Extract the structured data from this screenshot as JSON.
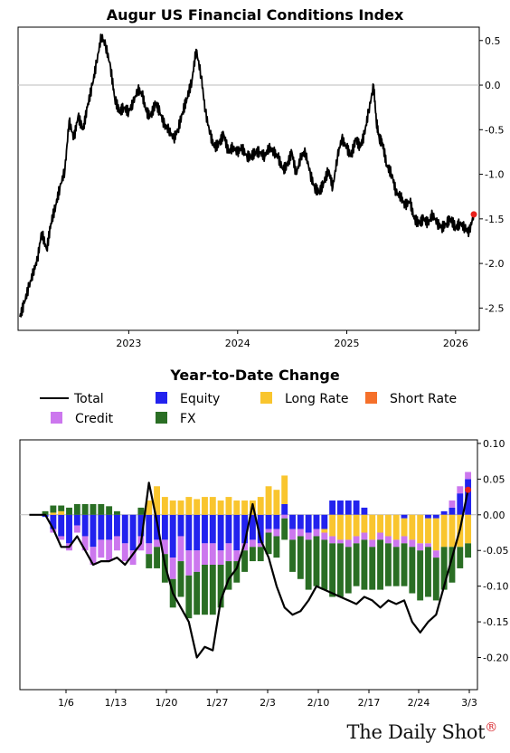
{
  "chart_data": [
    {
      "type": "line",
      "title": "Augur US Financial Conditions Index",
      "x_range": [
        "2022-01-01",
        "2026-03-03"
      ],
      "ylim": [
        -2.75,
        0.65
      ],
      "y_ticks": [
        "0.5",
        "0.0",
        "-0.5",
        "-1.0",
        "-1.5",
        "-2.0",
        "-2.5"
      ],
      "x_ticks": [
        "2023",
        "2024",
        "2025",
        "2026"
      ],
      "series": [
        {
          "x": [
            "2022-01-01",
            "2022-01-15",
            "2022-02-01",
            "2022-02-15",
            "2022-03-01",
            "2022-03-15",
            "2022-04-01",
            "2022-04-15",
            "2022-05-01",
            "2022-05-15",
            "2022-06-01",
            "2022-06-15",
            "2022-07-01",
            "2022-07-15",
            "2022-08-01",
            "2022-08-15",
            "2022-09-01",
            "2022-09-15",
            "2022-10-01",
            "2022-10-15",
            "2022-11-01",
            "2022-11-15",
            "2022-12-01",
            "2022-12-15",
            "2023-01-01",
            "2023-01-15",
            "2023-02-01",
            "2023-02-15",
            "2023-03-01",
            "2023-03-15",
            "2023-04-01",
            "2023-04-15",
            "2023-05-01",
            "2023-05-15",
            "2023-06-01",
            "2023-06-15",
            "2023-07-01",
            "2023-07-15",
            "2023-08-01",
            "2023-08-15",
            "2023-09-01",
            "2023-09-15",
            "2023-10-01",
            "2023-10-15",
            "2023-11-01",
            "2023-11-15",
            "2023-12-01",
            "2023-12-15",
            "2024-01-01",
            "2024-01-15",
            "2024-02-01",
            "2024-02-15",
            "2024-03-01",
            "2024-03-15",
            "2024-04-01",
            "2024-04-15",
            "2024-05-01",
            "2024-05-15",
            "2024-06-01",
            "2024-06-15",
            "2024-07-01",
            "2024-07-15",
            "2024-08-01",
            "2024-08-15",
            "2024-09-01",
            "2024-09-15",
            "2024-10-01",
            "2024-10-15",
            "2024-11-01",
            "2024-11-15",
            "2024-12-01",
            "2024-12-15",
            "2025-01-01",
            "2025-01-15",
            "2025-02-01",
            "2025-02-15",
            "2025-03-01",
            "2025-03-15",
            "2025-04-01",
            "2025-04-10",
            "2025-04-20",
            "2025-05-01",
            "2025-05-15",
            "2025-06-01",
            "2025-06-15",
            "2025-07-01",
            "2025-07-15",
            "2025-08-01",
            "2025-08-15",
            "2025-09-01",
            "2025-09-15",
            "2025-10-01",
            "2025-10-15",
            "2025-11-01",
            "2025-11-15",
            "2025-12-01",
            "2025-12-15",
            "2026-01-01",
            "2026-01-15",
            "2026-02-01",
            "2026-02-15",
            "2026-03-03"
          ],
          "values": [
            -2.6,
            -2.45,
            -2.25,
            -2.1,
            -1.95,
            -1.65,
            -1.85,
            -1.55,
            -1.35,
            -1.15,
            -0.95,
            -0.4,
            -0.6,
            -0.35,
            -0.5,
            -0.25,
            0.0,
            0.25,
            0.55,
            0.45,
            0.2,
            -0.15,
            -0.3,
            -0.25,
            -0.3,
            -0.2,
            -0.05,
            -0.1,
            -0.3,
            -0.35,
            -0.2,
            -0.3,
            -0.45,
            -0.5,
            -0.6,
            -0.5,
            -0.3,
            -0.15,
            0.05,
            0.4,
            0.1,
            -0.3,
            -0.55,
            -0.7,
            -0.65,
            -0.55,
            -0.75,
            -0.7,
            -0.75,
            -0.7,
            -0.8,
            -0.8,
            -0.75,
            -0.75,
            -0.8,
            -0.7,
            -0.75,
            -0.8,
            -0.95,
            -0.9,
            -0.75,
            -1.0,
            -0.8,
            -0.75,
            -1.0,
            -1.15,
            -1.2,
            -1.1,
            -0.95,
            -1.15,
            -0.8,
            -0.6,
            -0.7,
            -0.8,
            -0.6,
            -0.7,
            -0.55,
            -0.3,
            0.0,
            -0.4,
            -0.6,
            -0.65,
            -0.9,
            -1.0,
            -1.2,
            -1.25,
            -1.35,
            -1.3,
            -1.5,
            -1.55,
            -1.5,
            -1.55,
            -1.45,
            -1.55,
            -1.6,
            -1.55,
            -1.5,
            -1.6,
            -1.55,
            -1.6,
            -1.65,
            -1.45
          ]
        }
      ],
      "end_marker_color": "#e8211c",
      "line_color": "#000000"
    },
    {
      "type": "bar",
      "title": "Year-to-Date Change",
      "stacked": true,
      "ylim": [
        -0.245,
        0.105
      ],
      "y_ticks": [
        "0.10",
        "0.05",
        "0.00",
        "-0.05",
        "-0.10",
        "-0.15",
        "-0.20"
      ],
      "x_ticks": [
        "1/6",
        "1/13",
        "1/20",
        "1/27",
        "2/3",
        "2/10",
        "2/17",
        "2/24",
        "3/3"
      ],
      "legend": [
        {
          "label": "Total",
          "kind": "line",
          "color": "#000000"
        },
        {
          "label": "Equity",
          "kind": "box",
          "color": "#2222ee"
        },
        {
          "label": "Long Rate",
          "kind": "box",
          "color": "#f9c52e"
        },
        {
          "label": "Short Rate",
          "kind": "box",
          "color": "#f5702a"
        },
        {
          "label": "Credit",
          "kind": "box",
          "color": "#cc77ee"
        },
        {
          "label": "FX",
          "kind": "box",
          "color": "#2a6e24"
        }
      ],
      "series": [
        {
          "name": "Equity",
          "color": "#2222ee",
          "values": [
            0,
            0,
            -0.003,
            -0.02,
            -0.03,
            -0.04,
            -0.015,
            -0.03,
            -0.045,
            -0.035,
            -0.035,
            -0.03,
            -0.04,
            -0.05,
            -0.03,
            -0.04,
            -0.035,
            -0.035,
            -0.06,
            -0.03,
            -0.05,
            -0.05,
            -0.04,
            -0.04,
            -0.05,
            -0.04,
            -0.05,
            -0.04,
            -0.035,
            -0.04,
            -0.02,
            -0.02,
            0.015,
            -0.02,
            -0.02,
            -0.025,
            -0.02,
            -0.02,
            0.02,
            0.02,
            0.02,
            0.02,
            0.01,
            0.0,
            0.0,
            0.0,
            0.0,
            -0.005,
            0.0,
            0.0,
            -0.005,
            -0.005,
            0.005,
            0.01,
            0.03,
            0.05
          ]
        },
        {
          "name": "Long Rate",
          "color": "#f9c52e",
          "values": [
            0,
            0,
            0,
            0.003,
            0.005,
            0,
            0,
            0,
            0,
            0,
            0,
            0,
            0,
            0,
            0,
            0.02,
            0.04,
            0.025,
            0.02,
            0.02,
            0.025,
            0.022,
            0.025,
            0.025,
            0.02,
            0.025,
            0.02,
            0.02,
            0.02,
            0.025,
            0.04,
            0.035,
            0.04,
            0,
            0,
            0,
            0,
            -0.005,
            -0.03,
            -0.035,
            -0.035,
            -0.03,
            -0.025,
            -0.035,
            -0.025,
            -0.03,
            -0.035,
            -0.025,
            -0.035,
            -0.04,
            -0.035,
            -0.045,
            -0.045,
            -0.045,
            -0.045,
            -0.04
          ]
        },
        {
          "name": "Short Rate",
          "color": "#f5702a",
          "values": [
            0,
            0,
            0,
            0,
            0,
            0,
            0,
            0,
            0,
            0,
            0,
            0,
            0,
            0,
            0,
            0,
            0,
            0,
            0,
            0,
            0,
            0,
            0,
            0,
            0,
            0,
            0,
            0,
            0,
            0,
            0,
            0,
            0,
            0,
            0,
            0,
            0,
            0,
            0,
            0,
            0,
            0,
            0,
            0,
            0,
            0,
            0,
            0,
            0,
            0,
            0,
            0,
            0,
            0,
            0,
            0
          ]
        },
        {
          "name": "Credit",
          "color": "#cc77ee",
          "values": [
            0,
            0,
            0,
            -0.005,
            -0.005,
            -0.01,
            -0.01,
            -0.02,
            -0.025,
            -0.025,
            -0.03,
            -0.02,
            -0.025,
            -0.02,
            -0.02,
            -0.015,
            -0.01,
            -0.02,
            -0.03,
            -0.035,
            -0.035,
            -0.03,
            -0.03,
            -0.03,
            -0.02,
            -0.025,
            -0.015,
            -0.01,
            -0.01,
            -0.005,
            -0.005,
            -0.01,
            -0.005,
            -0.015,
            -0.01,
            -0.01,
            -0.01,
            -0.01,
            -0.01,
            -0.005,
            -0.01,
            -0.01,
            -0.01,
            -0.01,
            -0.01,
            -0.01,
            -0.01,
            -0.01,
            -0.01,
            -0.01,
            -0.005,
            -0.01,
            0,
            0.01,
            0.01,
            0.01
          ]
        },
        {
          "name": "FX",
          "color": "#2a6e24",
          "values": [
            0,
            0,
            0.005,
            0.01,
            0.008,
            0.01,
            0.015,
            0.015,
            0.015,
            0.015,
            0.012,
            0.005,
            0,
            0,
            0.01,
            -0.02,
            -0.03,
            -0.04,
            -0.04,
            -0.05,
            -0.06,
            -0.06,
            -0.07,
            -0.07,
            -0.06,
            -0.04,
            -0.03,
            -0.03,
            -0.02,
            -0.02,
            -0.03,
            -0.03,
            -0.03,
            -0.045,
            -0.06,
            -0.07,
            -0.07,
            -0.07,
            -0.075,
            -0.075,
            -0.065,
            -0.06,
            -0.07,
            -0.06,
            -0.07,
            -0.06,
            -0.055,
            -0.06,
            -0.065,
            -0.07,
            -0.07,
            -0.06,
            -0.06,
            -0.05,
            -0.03,
            -0.02
          ]
        },
        {
          "name": "Total",
          "color": "#000000",
          "kind": "line",
          "values": [
            0,
            0,
            0,
            -0.02,
            -0.045,
            -0.045,
            -0.03,
            -0.05,
            -0.07,
            -0.065,
            -0.065,
            -0.06,
            -0.07,
            -0.055,
            -0.04,
            0.045,
            -0.01,
            -0.07,
            -0.11,
            -0.13,
            -0.15,
            -0.2,
            -0.185,
            -0.19,
            -0.12,
            -0.09,
            -0.075,
            -0.04,
            0.015,
            -0.035,
            -0.06,
            -0.1,
            -0.13,
            -0.14,
            -0.135,
            -0.12,
            -0.1,
            -0.105,
            -0.11,
            -0.115,
            -0.12,
            -0.125,
            -0.115,
            -0.12,
            -0.13,
            -0.12,
            -0.125,
            -0.12,
            -0.15,
            -0.165,
            -0.15,
            -0.14,
            -0.1,
            -0.06,
            -0.02,
            0.035
          ]
        }
      ],
      "end_marker_color": "#e8211c"
    }
  ],
  "brand": {
    "text": "The Daily Shot",
    "mark": "®"
  }
}
